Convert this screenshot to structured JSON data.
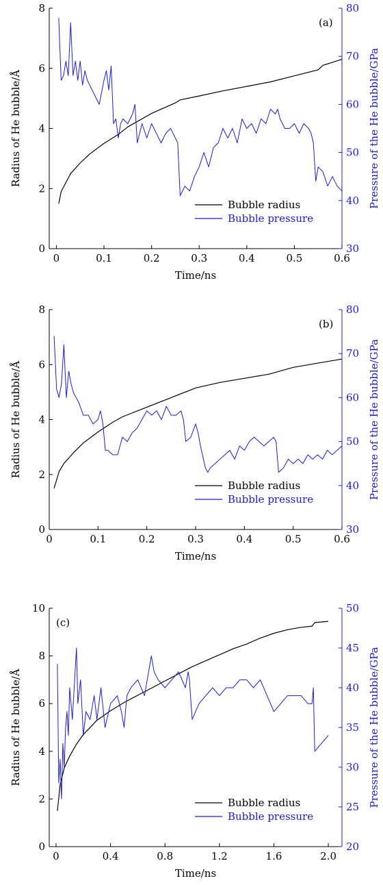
{
  "colors": {
    "radius": "#000000",
    "pressure": "#1a1adf",
    "axis": "#000000"
  },
  "chart_data": [
    {
      "type": "line",
      "panel": "(a)",
      "xlabel": "Time/ns",
      "ylabel_left": "Radius of He bubble/Å",
      "ylabel_right": "Pressure of the He bubble/GPa",
      "xlim": [
        -0.015,
        0.6
      ],
      "ylim_left": [
        0,
        8
      ],
      "ylim_right": [
        30,
        80
      ],
      "xticks": [
        0,
        0.1,
        0.2,
        0.3,
        0.4,
        0.5,
        0.6
      ],
      "xtick_labels": [
        "0",
        "0.1",
        "0.2",
        "0.3",
        "0.4",
        "0.5",
        "0.6"
      ],
      "yticks_left": [
        0,
        2,
        4,
        6,
        8
      ],
      "ytick_labels_left": [
        "0",
        "2",
        "4",
        "6",
        "8"
      ],
      "yticks_right": [
        30,
        40,
        50,
        60,
        70,
        80
      ],
      "ytick_labels_right": [
        "30",
        "40",
        "50",
        "60",
        "70",
        "80"
      ],
      "legend": {
        "position": "lower-right",
        "entries": [
          "Bubble radius",
          "Bubble pressure"
        ]
      },
      "series": [
        {
          "name": "Bubble radius",
          "axis": "left",
          "x": [
            0.005,
            0.01,
            0.02,
            0.03,
            0.05,
            0.07,
            0.1,
            0.13,
            0.15,
            0.2,
            0.25,
            0.26,
            0.3,
            0.35,
            0.4,
            0.45,
            0.5,
            0.55,
            0.56,
            0.6
          ],
          "y": [
            1.5,
            1.9,
            2.2,
            2.5,
            2.85,
            3.15,
            3.5,
            3.8,
            4.05,
            4.5,
            4.85,
            4.95,
            5.08,
            5.25,
            5.4,
            5.55,
            5.75,
            5.95,
            6.1,
            6.3
          ]
        },
        {
          "name": "Bubble pressure",
          "axis": "right",
          "x": [
            0.005,
            0.01,
            0.015,
            0.02,
            0.025,
            0.03,
            0.035,
            0.04,
            0.045,
            0.05,
            0.055,
            0.06,
            0.065,
            0.07,
            0.08,
            0.09,
            0.1,
            0.105,
            0.11,
            0.115,
            0.12,
            0.125,
            0.13,
            0.135,
            0.14,
            0.15,
            0.16,
            0.165,
            0.17,
            0.18,
            0.19,
            0.2,
            0.21,
            0.22,
            0.23,
            0.24,
            0.25,
            0.255,
            0.26,
            0.27,
            0.28,
            0.29,
            0.3,
            0.31,
            0.32,
            0.33,
            0.34,
            0.35,
            0.36,
            0.37,
            0.38,
            0.39,
            0.4,
            0.41,
            0.42,
            0.43,
            0.44,
            0.45,
            0.46,
            0.465,
            0.47,
            0.48,
            0.49,
            0.5,
            0.51,
            0.52,
            0.53,
            0.535,
            0.54,
            0.545,
            0.55,
            0.56,
            0.57,
            0.58,
            0.59,
            0.6
          ],
          "y": [
            78,
            65,
            66,
            69,
            66,
            77,
            66,
            69,
            65,
            69,
            64,
            67,
            65,
            64,
            62,
            60,
            65,
            67,
            63,
            68,
            56,
            57,
            53,
            56,
            57,
            56,
            58,
            60,
            52,
            56,
            53,
            56,
            54,
            52,
            54,
            55,
            53,
            52,
            41,
            43,
            42,
            45,
            47,
            50,
            47,
            51,
            52,
            55,
            53,
            55,
            52,
            57,
            55,
            56,
            54,
            57,
            56,
            59,
            58,
            59,
            57,
            55,
            55,
            56,
            54,
            56,
            55,
            54,
            52,
            44,
            47,
            46,
            43,
            45,
            43,
            42
          ]
        }
      ]
    },
    {
      "type": "line",
      "panel": "(b)",
      "xlabel": "Time/ns",
      "ylabel_left": "Radius of He bubble/Å",
      "ylabel_right": "Pressure of the He bubble/GPa",
      "xlim": [
        0,
        0.6
      ],
      "ylim_left": [
        0,
        8
      ],
      "ylim_right": [
        30,
        80
      ],
      "xticks": [
        0,
        0.1,
        0.2,
        0.3,
        0.4,
        0.5,
        0.6
      ],
      "xtick_labels": [
        "0",
        "0.1",
        "0.2",
        "0.3",
        "0.4",
        "0.5",
        "0.6"
      ],
      "yticks_left": [
        0,
        2,
        4,
        6,
        8
      ],
      "ytick_labels_left": [
        "0",
        "2",
        "4",
        "6",
        "8"
      ],
      "yticks_right": [
        30,
        40,
        50,
        60,
        70,
        80
      ],
      "ytick_labels_right": [
        "30",
        "40",
        "50",
        "60",
        "70",
        "80"
      ],
      "legend": {
        "position": "lower-right",
        "entries": [
          "Bubble radius",
          "Bubble pressure"
        ]
      },
      "series": [
        {
          "name": "Bubble radius",
          "axis": "left",
          "x": [
            0.01,
            0.015,
            0.02,
            0.03,
            0.05,
            0.07,
            0.1,
            0.13,
            0.15,
            0.2,
            0.25,
            0.3,
            0.35,
            0.4,
            0.45,
            0.5,
            0.55,
            0.6
          ],
          "y": [
            1.5,
            1.8,
            2.1,
            2.4,
            2.8,
            3.15,
            3.55,
            3.9,
            4.1,
            4.45,
            4.8,
            5.15,
            5.35,
            5.5,
            5.65,
            5.9,
            6.05,
            6.2
          ]
        },
        {
          "name": "Bubble pressure",
          "axis": "right",
          "x": [
            0.01,
            0.015,
            0.02,
            0.025,
            0.03,
            0.035,
            0.04,
            0.045,
            0.05,
            0.055,
            0.06,
            0.07,
            0.08,
            0.09,
            0.1,
            0.105,
            0.11,
            0.115,
            0.12,
            0.13,
            0.14,
            0.15,
            0.16,
            0.17,
            0.18,
            0.19,
            0.2,
            0.21,
            0.22,
            0.23,
            0.24,
            0.25,
            0.26,
            0.27,
            0.275,
            0.28,
            0.29,
            0.3,
            0.305,
            0.31,
            0.32,
            0.325,
            0.33,
            0.34,
            0.35,
            0.36,
            0.37,
            0.38,
            0.39,
            0.4,
            0.41,
            0.42,
            0.43,
            0.44,
            0.45,
            0.46,
            0.465,
            0.47,
            0.48,
            0.49,
            0.5,
            0.51,
            0.52,
            0.53,
            0.54,
            0.55,
            0.56,
            0.57,
            0.58,
            0.59,
            0.6
          ],
          "y": [
            74,
            62,
            60,
            63,
            72,
            60,
            66,
            63,
            61,
            60,
            59,
            56,
            56,
            54,
            55,
            57,
            54,
            48,
            48,
            47,
            47,
            51,
            50,
            52,
            53,
            55,
            57,
            56,
            57,
            55,
            58,
            56,
            56,
            57,
            55,
            50,
            51,
            54,
            52,
            49,
            44,
            43,
            44,
            45,
            46,
            47,
            48,
            46,
            49,
            48,
            50,
            51,
            50,
            49,
            50,
            51,
            50,
            43,
            44,
            46,
            45,
            46,
            45,
            47,
            46,
            47,
            46,
            48,
            47,
            48,
            49
          ]
        }
      ]
    },
    {
      "type": "line",
      "panel": "(c)",
      "xlabel": "Time/ns",
      "ylabel_left": "Radius of He bubble/Å",
      "ylabel_right": "Pressure of the He bubble/GPa",
      "xlim": [
        -0.05,
        2.1
      ],
      "ylim_left": [
        0,
        10
      ],
      "ylim_right": [
        20,
        50
      ],
      "xticks": [
        0,
        0.4,
        0.8,
        1.2,
        1.6,
        2.0
      ],
      "xtick_labels": [
        "0",
        "0.4",
        "0.8",
        "1.2",
        "1.6",
        "2.0"
      ],
      "yticks_left": [
        0,
        2,
        4,
        6,
        8,
        10
      ],
      "ytick_labels_left": [
        "0",
        "2",
        "4",
        "6",
        "8",
        "10"
      ],
      "yticks_right": [
        20,
        25,
        30,
        35,
        40,
        45,
        50
      ],
      "ytick_labels_right": [
        "20",
        "25",
        "30",
        "35",
        "40",
        "45",
        "50"
      ],
      "legend": {
        "position": "lower-right",
        "entries": [
          "Bubble radius",
          "Bubble pressure"
        ]
      },
      "series": [
        {
          "name": "Bubble radius",
          "axis": "left",
          "x": [
            0.01,
            0.03,
            0.06,
            0.1,
            0.15,
            0.2,
            0.3,
            0.4,
            0.5,
            0.6,
            0.7,
            0.8,
            0.9,
            1.0,
            1.1,
            1.2,
            1.3,
            1.4,
            1.5,
            1.6,
            1.7,
            1.8,
            1.88,
            1.9,
            2.0
          ],
          "y": [
            1.5,
            2.6,
            3.3,
            3.8,
            4.3,
            4.7,
            5.3,
            5.7,
            6.05,
            6.35,
            6.65,
            6.95,
            7.25,
            7.55,
            7.8,
            8.05,
            8.3,
            8.5,
            8.75,
            8.95,
            9.1,
            9.2,
            9.25,
            9.4,
            9.45
          ]
        },
        {
          "name": "Bubble pressure",
          "axis": "right",
          "x": [
            0.01,
            0.02,
            0.03,
            0.04,
            0.05,
            0.06,
            0.07,
            0.08,
            0.09,
            0.1,
            0.12,
            0.14,
            0.15,
            0.16,
            0.18,
            0.2,
            0.22,
            0.25,
            0.28,
            0.3,
            0.33,
            0.36,
            0.4,
            0.45,
            0.48,
            0.5,
            0.52,
            0.55,
            0.6,
            0.65,
            0.7,
            0.72,
            0.75,
            0.8,
            0.85,
            0.9,
            0.95,
            0.97,
            0.98,
            1.0,
            1.05,
            1.1,
            1.15,
            1.2,
            1.25,
            1.3,
            1.35,
            1.4,
            1.45,
            1.5,
            1.55,
            1.6,
            1.65,
            1.7,
            1.75,
            1.8,
            1.85,
            1.88,
            1.89,
            1.9,
            1.95,
            2.0
          ],
          "y": [
            43,
            28,
            31,
            26,
            33,
            30,
            35,
            37,
            34,
            40,
            36,
            42,
            45,
            38,
            41,
            34,
            37,
            36,
            39,
            36,
            40,
            35,
            38,
            39,
            37,
            35,
            39,
            40,
            41,
            39,
            44,
            42,
            41,
            40,
            41,
            42,
            40,
            42,
            41,
            36,
            38,
            39,
            40,
            39,
            40,
            40,
            41,
            41,
            40,
            41,
            39,
            37,
            38,
            39,
            39,
            39,
            38,
            38,
            40,
            32,
            33,
            34
          ]
        }
      ]
    }
  ]
}
